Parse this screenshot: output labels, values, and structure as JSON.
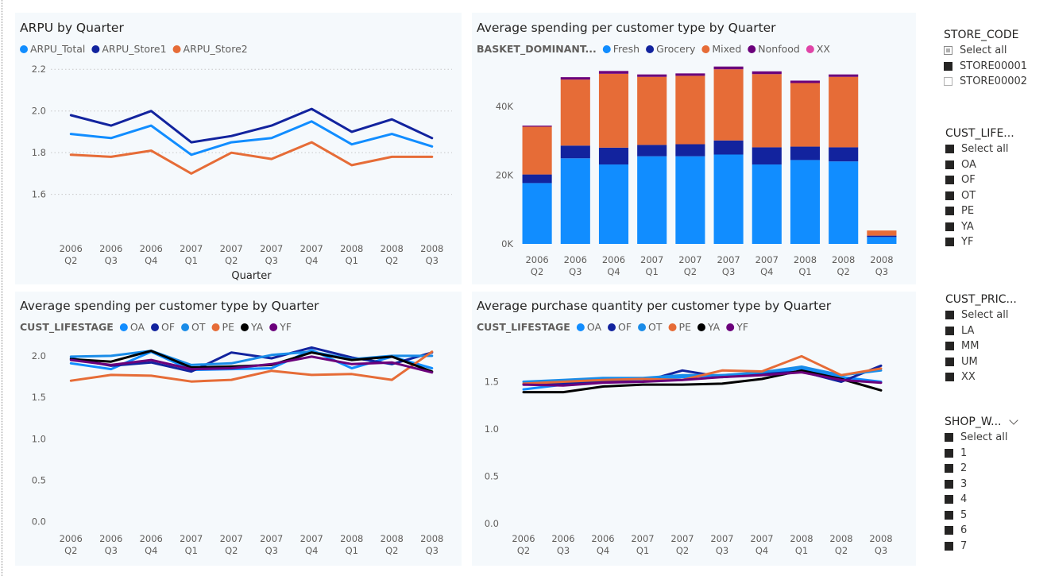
{
  "quarters": [
    [
      "2006",
      "Q2"
    ],
    [
      "2006",
      "Q3"
    ],
    [
      "2006",
      "Q4"
    ],
    [
      "2007",
      "Q1"
    ],
    [
      "2007",
      "Q2"
    ],
    [
      "2007",
      "Q3"
    ],
    [
      "2007",
      "Q4"
    ],
    [
      "2008",
      "Q1"
    ],
    [
      "2008",
      "Q2"
    ],
    [
      "2008",
      "Q3"
    ]
  ],
  "slicers": {
    "store_code": {
      "title": "STORE_CODE",
      "items": [
        {
          "label": "Select all",
          "state": "partial"
        },
        {
          "label": "STORE00001",
          "state": "on"
        },
        {
          "label": "STORE00002",
          "state": "off"
        }
      ]
    },
    "cust_lifestage": {
      "title": "CUST_LIFE...",
      "items": [
        {
          "label": "Select all",
          "state": "on"
        },
        {
          "label": "OA",
          "state": "on"
        },
        {
          "label": "OF",
          "state": "on"
        },
        {
          "label": "OT",
          "state": "on"
        },
        {
          "label": "PE",
          "state": "on"
        },
        {
          "label": "YA",
          "state": "on"
        },
        {
          "label": "YF",
          "state": "on"
        }
      ]
    },
    "cust_price": {
      "title": "CUST_PRIC...",
      "items": [
        {
          "label": "Select all",
          "state": "on"
        },
        {
          "label": "LA",
          "state": "on"
        },
        {
          "label": "MM",
          "state": "on"
        },
        {
          "label": "UM",
          "state": "on"
        },
        {
          "label": "XX",
          "state": "on"
        }
      ]
    },
    "shop_week": {
      "title": "SHOP_W...",
      "chevron_icon": "chevron-down-icon",
      "items": [
        {
          "label": "Select all",
          "state": "on"
        },
        {
          "label": "1",
          "state": "on"
        },
        {
          "label": "2",
          "state": "on"
        },
        {
          "label": "3",
          "state": "on"
        },
        {
          "label": "4",
          "state": "on"
        },
        {
          "label": "5",
          "state": "on"
        },
        {
          "label": "6",
          "state": "on"
        },
        {
          "label": "7",
          "state": "on"
        }
      ]
    }
  },
  "chart_data": [
    {
      "id": "arpu",
      "type": "line",
      "title": "ARPU by Quarter",
      "xlabel": "Quarter",
      "ylabel": "",
      "legend_title": "",
      "legend_position": "top-left",
      "ylim": [
        1.45,
        2.22
      ],
      "yticks": [
        1.6,
        1.8,
        2.0,
        2.2
      ],
      "grid": true,
      "series": [
        {
          "name": "ARPU_Total",
          "color": "#118DFF",
          "values": [
            1.89,
            1.87,
            1.93,
            1.79,
            1.85,
            1.87,
            1.95,
            1.84,
            1.89,
            1.83
          ]
        },
        {
          "name": "ARPU_Store1",
          "color": "#12239E",
          "values": [
            1.98,
            1.93,
            2.0,
            1.85,
            1.88,
            1.93,
            2.01,
            1.9,
            1.96,
            1.87
          ]
        },
        {
          "name": "ARPU_Store2",
          "color": "#E66C37",
          "values": [
            1.79,
            1.78,
            1.81,
            1.7,
            1.8,
            1.77,
            1.85,
            1.74,
            1.78,
            1.78
          ]
        }
      ]
    },
    {
      "id": "spend_basket",
      "type": "bar",
      "stacked": true,
      "title": "Average spending per customer type by Quarter",
      "legend_title": "BASKET_DOMINANT...",
      "legend_position": "top-left",
      "ylim": [
        0,
        52000
      ],
      "yticks": [
        0,
        20000,
        40000
      ],
      "ytick_labels": [
        "0K",
        "20K",
        "40K"
      ],
      "grid": false,
      "series": [
        {
          "name": "Fresh",
          "color": "#118DFF",
          "values": [
            17700,
            24900,
            23100,
            25500,
            25500,
            26000,
            23100,
            24400,
            24000,
            2000
          ]
        },
        {
          "name": "Grocery",
          "color": "#12239E",
          "values": [
            2500,
            3700,
            4900,
            3300,
            3500,
            4100,
            5000,
            3900,
            4100,
            400
          ]
        },
        {
          "name": "Mixed",
          "color": "#E66C37",
          "values": [
            13900,
            19200,
            21500,
            19800,
            19900,
            20700,
            21300,
            18500,
            20500,
            1500
          ]
        },
        {
          "name": "Nonfood",
          "color": "#6B007B",
          "values": [
            300,
            700,
            800,
            700,
            700,
            800,
            800,
            700,
            700,
            0
          ]
        },
        {
          "name": "XX",
          "color": "#E044A7",
          "values": [
            0,
            0,
            0,
            0,
            0,
            0,
            0,
            0,
            0,
            0
          ]
        }
      ]
    },
    {
      "id": "spend_lifestage",
      "type": "line",
      "title": "Average spending per customer type by Quarter",
      "legend_title": "CUST_LIFESTAGE",
      "legend_position": "top-left",
      "ylim": [
        -0.08,
        2.2
      ],
      "yticks": [
        0.0,
        0.5,
        1.0,
        1.5,
        2.0
      ],
      "ytick_labels": [
        "0.0",
        "0.5",
        "1.0",
        "1.5",
        "2.0"
      ],
      "grid": false,
      "series": [
        {
          "name": "OA",
          "color": "#118DFF",
          "values": [
            1.91,
            1.84,
            2.05,
            1.83,
            1.84,
            1.85,
            2.07,
            1.85,
            1.99,
            1.85
          ]
        },
        {
          "name": "OF",
          "color": "#12239E",
          "values": [
            1.97,
            1.88,
            1.92,
            1.81,
            2.04,
            1.97,
            2.1,
            1.98,
            1.9,
            2.04
          ]
        },
        {
          "name": "OT",
          "color": "#1A8CE8",
          "values": [
            1.99,
            2.0,
            2.06,
            1.89,
            1.91,
            2.01,
            2.05,
            1.96,
            2.0,
            2.0
          ]
        },
        {
          "name": "PE",
          "color": "#E66C37",
          "values": [
            1.7,
            1.77,
            1.76,
            1.69,
            1.71,
            1.82,
            1.77,
            1.78,
            1.71,
            2.05
          ]
        },
        {
          "name": "YA",
          "color": "#000000",
          "values": [
            1.96,
            1.93,
            2.06,
            1.86,
            1.87,
            1.89,
            2.04,
            1.95,
            1.99,
            1.81
          ]
        },
        {
          "name": "YF",
          "color": "#6B007B",
          "values": [
            1.95,
            1.89,
            1.95,
            1.84,
            1.85,
            1.9,
            1.99,
            1.9,
            1.92,
            1.8
          ]
        }
      ]
    },
    {
      "id": "qty_lifestage",
      "type": "line",
      "title": "Average purchase quantity per customer type by Quarter",
      "legend_title": "CUST_LIFESTAGE",
      "legend_position": "top-left",
      "ylim": [
        -0.05,
        1.95
      ],
      "yticks": [
        0.0,
        0.5,
        1.0,
        1.5
      ],
      "ytick_labels": [
        "0.0",
        "0.5",
        "1.0",
        "1.5"
      ],
      "grid": false,
      "series": [
        {
          "name": "OA",
          "color": "#118DFF",
          "values": [
            1.42,
            1.47,
            1.5,
            1.52,
            1.55,
            1.57,
            1.59,
            1.64,
            1.55,
            1.5
          ]
        },
        {
          "name": "OF",
          "color": "#12239E",
          "values": [
            1.47,
            1.48,
            1.5,
            1.5,
            1.62,
            1.55,
            1.58,
            1.61,
            1.5,
            1.67
          ]
        },
        {
          "name": "OT",
          "color": "#1A8CE8",
          "values": [
            1.5,
            1.52,
            1.54,
            1.54,
            1.57,
            1.57,
            1.6,
            1.66,
            1.57,
            1.62
          ]
        },
        {
          "name": "PE",
          "color": "#E66C37",
          "values": [
            1.48,
            1.5,
            1.52,
            1.53,
            1.52,
            1.62,
            1.61,
            1.77,
            1.57,
            1.64
          ]
        },
        {
          "name": "YA",
          "color": "#000000",
          "values": [
            1.39,
            1.39,
            1.45,
            1.47,
            1.47,
            1.48,
            1.53,
            1.62,
            1.53,
            1.41
          ]
        },
        {
          "name": "YF",
          "color": "#6B007B",
          "values": [
            1.47,
            1.46,
            1.49,
            1.5,
            1.52,
            1.55,
            1.57,
            1.6,
            1.52,
            1.49
          ]
        }
      ]
    }
  ]
}
